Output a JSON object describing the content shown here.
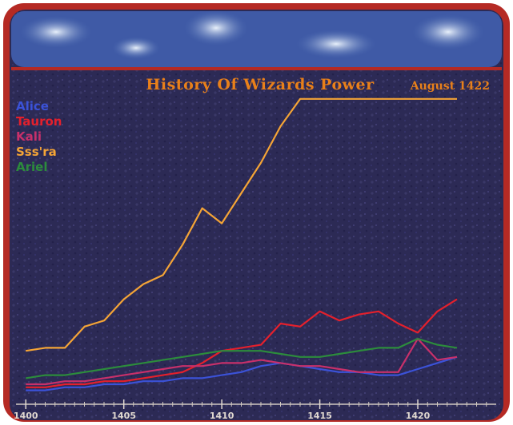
{
  "chart_data": {
    "type": "line",
    "title": "History Of Wizards Power",
    "subtitle": "August 1422",
    "x": [
      1400,
      1401,
      1402,
      1403,
      1404,
      1405,
      1406,
      1407,
      1408,
      1409,
      1410,
      1411,
      1412,
      1413,
      1414,
      1415,
      1416,
      1417,
      1418,
      1419,
      1420,
      1421,
      1422
    ],
    "xlim": [
      1399.5,
      1424
    ],
    "xticks": [
      1400,
      1405,
      1410,
      1415,
      1420
    ],
    "ylim": [
      0,
      100
    ],
    "series": [
      {
        "name": "Alice",
        "color": "#3b52d8",
        "values": [
          3,
          3,
          4,
          4,
          5,
          5,
          6,
          6,
          7,
          7,
          8,
          9,
          11,
          12,
          11,
          10,
          9,
          9,
          8,
          8,
          10,
          12,
          14
        ]
      },
      {
        "name": "Tauron",
        "color": "#e4202c",
        "values": [
          4,
          4,
          5,
          5,
          6,
          6,
          7,
          8,
          9,
          12,
          16,
          17,
          18,
          25,
          24,
          29,
          26,
          28,
          29,
          25,
          22,
          29,
          33
        ]
      },
      {
        "name": "Kali",
        "color": "#c8306a",
        "values": [
          5,
          5,
          6,
          6,
          7,
          8,
          9,
          10,
          11,
          11,
          12,
          12,
          13,
          12,
          11,
          11,
          10,
          9,
          9,
          9,
          20,
          13,
          14
        ]
      },
      {
        "name": "Sss'ra",
        "color": "#f4a436",
        "values": [
          16,
          17,
          17,
          24,
          26,
          33,
          38,
          41,
          51,
          63,
          58,
          68,
          78,
          90,
          99,
          99,
          99,
          99,
          99,
          99,
          99,
          99,
          99
        ]
      },
      {
        "name": "Ariel",
        "color": "#2c8c3c",
        "values": [
          7,
          8,
          8,
          9,
          10,
          11,
          12,
          13,
          14,
          15,
          16,
          16,
          16,
          15,
          14,
          14,
          15,
          16,
          17,
          17,
          20,
          18,
          17
        ]
      }
    ]
  }
}
